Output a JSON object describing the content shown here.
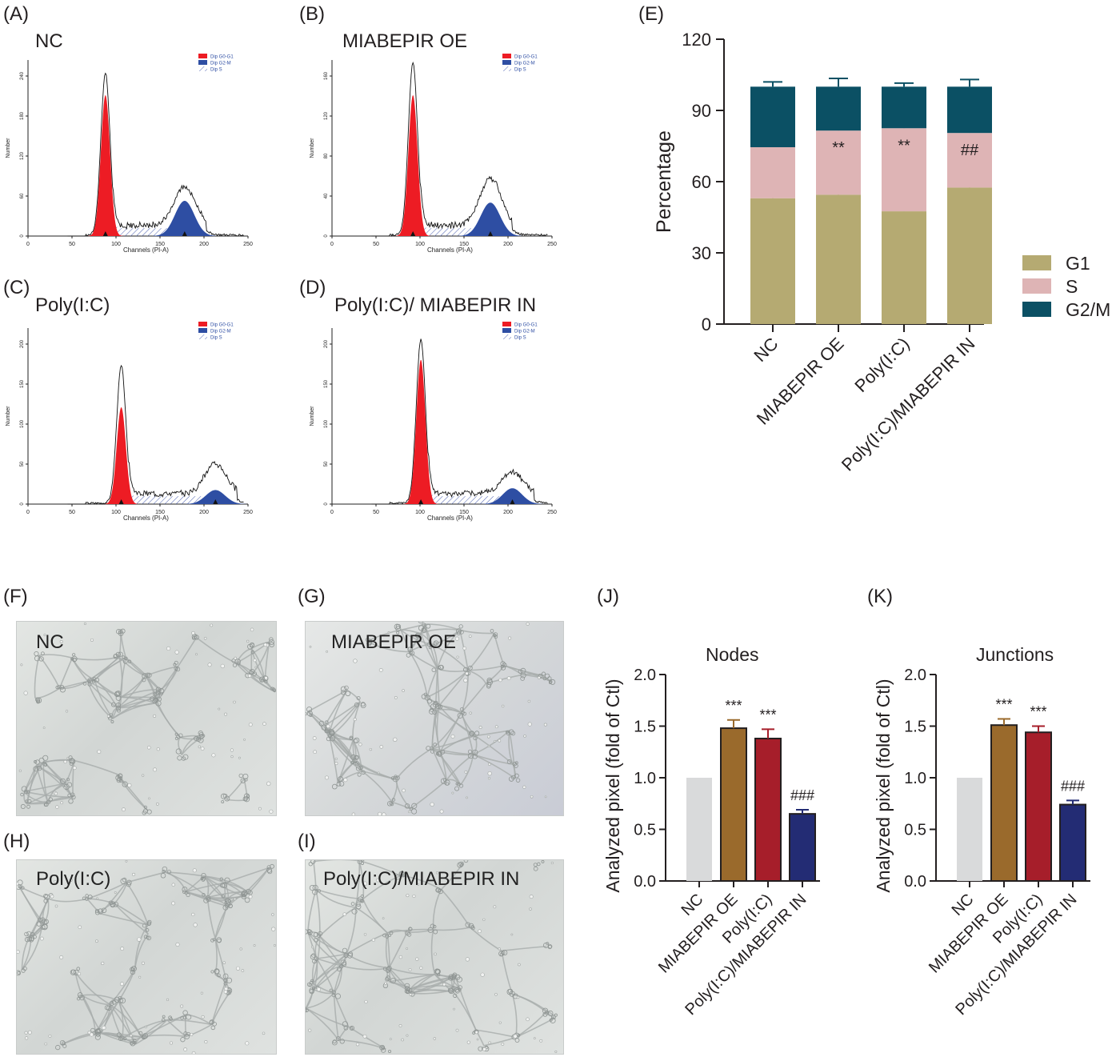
{
  "panels": {
    "A": {
      "tag": "(A)",
      "title": "NC"
    },
    "B": {
      "tag": "(B)",
      "title": "MIABEPIR OE"
    },
    "C": {
      "tag": "(C)",
      "title": "Poly(I:C)"
    },
    "D": {
      "tag": "(D)",
      "title": "Poly(I:C)/ MIABEPIR IN"
    },
    "E": {
      "tag": "(E)"
    },
    "F": {
      "tag": "(F)",
      "title": "NC"
    },
    "G": {
      "tag": "(G)",
      "title": "MIABEPIR OE"
    },
    "H": {
      "tag": "(H)",
      "title": "Poly(I:C)"
    },
    "I": {
      "tag": "(I)",
      "title": "Poly(I:C)/MIABEPIR IN"
    },
    "J": {
      "tag": "(J)",
      "title": "Nodes"
    },
    "K": {
      "tag": "(K)",
      "title": "Junctions"
    }
  },
  "histo_common": {
    "ylabel": "Number",
    "xlabel": "Channels (PI-A)",
    "legend": [
      "Dip G0-G1",
      "Dip G2-M",
      "Dip S"
    ],
    "xticks": [
      "0",
      "50",
      "100",
      "150",
      "200",
      "250"
    ]
  },
  "histograms": [
    {
      "id": "A",
      "yticks": [
        "0",
        "60",
        "120",
        "180",
        "240"
      ],
      "g1_center": 88,
      "g1_peak": 0.92,
      "g1_fill": 0.8,
      "g2_center": 178,
      "g2_peak": 0.22,
      "g2_fill": 0.2
    },
    {
      "id": "B",
      "yticks": [
        "0",
        "40",
        "80",
        "120",
        "160"
      ],
      "g1_center": 92,
      "g1_peak": 0.98,
      "g1_fill": 0.8,
      "g2_center": 180,
      "g2_peak": 0.27,
      "g2_fill": 0.19
    },
    {
      "id": "C",
      "yticks": [
        "0",
        "50",
        "100",
        "150",
        "200"
      ],
      "g1_center": 106,
      "g1_peak": 0.78,
      "g1_fill": 0.55,
      "g2_center": 213,
      "g2_peak": 0.17,
      "g2_fill": 0.08
    },
    {
      "id": "D",
      "yticks": [
        "0",
        "50",
        "100",
        "150",
        "200"
      ],
      "g1_center": 101,
      "g1_peak": 0.93,
      "g1_fill": 0.82,
      "g2_center": 205,
      "g2_peak": 0.12,
      "g2_fill": 0.09
    }
  ],
  "colors": {
    "g1": "#b5aa72",
    "s": "#deb4b5",
    "g2m": "#0b5064",
    "nc": "#d9dadb",
    "oe": "#9a6a2c",
    "polyic": "#a61e2a",
    "in": "#232c74",
    "histo_red": "#ed1c24",
    "histo_blue": "#2e4ea3"
  },
  "chart_data": [
    {
      "id": "E",
      "type": "bar",
      "stacked": true,
      "categories": [
        "NC",
        "MIABEPIR OE",
        "Poly(I:C)",
        "Poly(I:C)/MIABEPIR IN"
      ],
      "series": [
        {
          "name": "G1",
          "values": [
            53,
            54.5,
            47.5,
            57.5
          ],
          "errors": [
            2,
            4.5,
            1.5,
            3
          ]
        },
        {
          "name": "S",
          "values": [
            21.5,
            27,
            35,
            23
          ],
          "errors": [
            0.5,
            1.5,
            0.5,
            0.5
          ]
        },
        {
          "name": "G2/M",
          "values": [
            25.5,
            18.5,
            17.5,
            19.5
          ],
          "errors": [
            2,
            3.5,
            1.5,
            3
          ]
        }
      ],
      "annotations": [
        "",
        "**",
        "**",
        "##"
      ],
      "ylabel": "Percentage",
      "ylim": [
        0,
        120
      ],
      "yticks": [
        "0",
        "30",
        "60",
        "90",
        "120"
      ],
      "legend_position": "right"
    },
    {
      "id": "J",
      "type": "bar",
      "title": "Nodes",
      "categories": [
        "NC",
        "MIABEPIR OE",
        "Poly(I:C)",
        "Poly(I:C)/MIABEPIR IN"
      ],
      "values": [
        1.0,
        1.48,
        1.38,
        0.65
      ],
      "errors": [
        0,
        0.08,
        0.09,
        0.04
      ],
      "annotations": [
        "",
        "***",
        "***",
        "###"
      ],
      "ylabel": "Analyzed pixel (fold of Ctl)",
      "ylim": [
        0,
        2.0
      ],
      "yticks": [
        "0.0",
        "0.5",
        "1.0",
        "1.5",
        "2.0"
      ]
    },
    {
      "id": "K",
      "type": "bar",
      "title": "Junctions",
      "categories": [
        "NC",
        "MIABEPIR OE",
        "Poly(I:C)",
        "Poly(I:C)/MIABEPIR IN"
      ],
      "values": [
        1.0,
        1.51,
        1.44,
        0.74
      ],
      "errors": [
        0,
        0.06,
        0.06,
        0.04
      ],
      "annotations": [
        "",
        "***",
        "***",
        "###"
      ],
      "ylabel": "Analyzed pixel (fold of Ctl)",
      "ylim": [
        0,
        2.0
      ],
      "yticks": [
        "0.0",
        "0.5",
        "1.0",
        "1.5",
        "2.0"
      ]
    }
  ]
}
